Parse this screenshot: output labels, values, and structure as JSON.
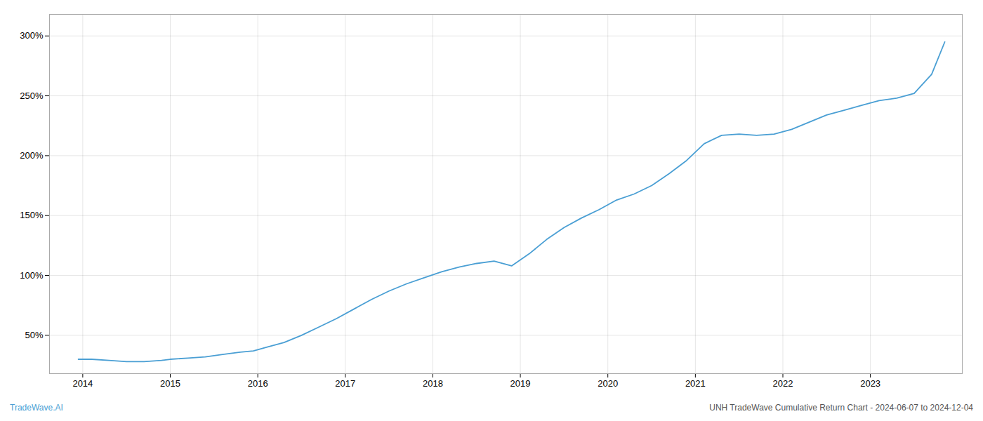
{
  "chart_data": {
    "type": "line",
    "x": [
      2013.95,
      2014.1,
      2014.3,
      2014.5,
      2014.7,
      2014.9,
      2015.0,
      2015.2,
      2015.4,
      2015.6,
      2015.8,
      2015.95,
      2016.1,
      2016.3,
      2016.5,
      2016.7,
      2016.9,
      2017.1,
      2017.3,
      2017.5,
      2017.7,
      2017.9,
      2018.1,
      2018.3,
      2018.5,
      2018.7,
      2018.9,
      2019.1,
      2019.3,
      2019.5,
      2019.7,
      2019.9,
      2020.1,
      2020.3,
      2020.5,
      2020.7,
      2020.9,
      2021.1,
      2021.3,
      2021.5,
      2021.7,
      2021.9,
      2022.1,
      2022.3,
      2022.5,
      2022.7,
      2022.9,
      2023.1,
      2023.3,
      2023.5,
      2023.7,
      2023.85
    ],
    "values": [
      30,
      30,
      29,
      28,
      28,
      29,
      30,
      31,
      32,
      34,
      36,
      37,
      40,
      44,
      50,
      57,
      64,
      72,
      80,
      87,
      93,
      98,
      103,
      107,
      110,
      112,
      108,
      118,
      130,
      140,
      148,
      155,
      163,
      168,
      175,
      185,
      196,
      210,
      217,
      218,
      217,
      218,
      222,
      228,
      234,
      238,
      242,
      246,
      248,
      252,
      268,
      295
    ],
    "color": "#4a9fd4",
    "xlim": [
      2013.62,
      2024.05
    ],
    "xticks": [
      2014,
      2015,
      2016,
      2017,
      2018,
      2019,
      2020,
      2021,
      2022,
      2023
    ],
    "ylim": [
      18,
      318
    ],
    "yticks": [
      {
        "value": 50,
        "label": "50%"
      },
      {
        "value": 100,
        "label": "100%"
      },
      {
        "value": 150,
        "label": "150%"
      },
      {
        "value": 200,
        "label": "200%"
      },
      {
        "value": 250,
        "label": "250%"
      },
      {
        "value": 300,
        "label": "300%"
      }
    ],
    "grid": true,
    "annotations": [
      {
        "text": "TradeWave.AI",
        "color": "#4a9fd4"
      },
      {
        "text": "UNH TradeWave Cumulative Return Chart - 2024-06-07 to 2024-12-04",
        "color": "#555555"
      }
    ]
  }
}
